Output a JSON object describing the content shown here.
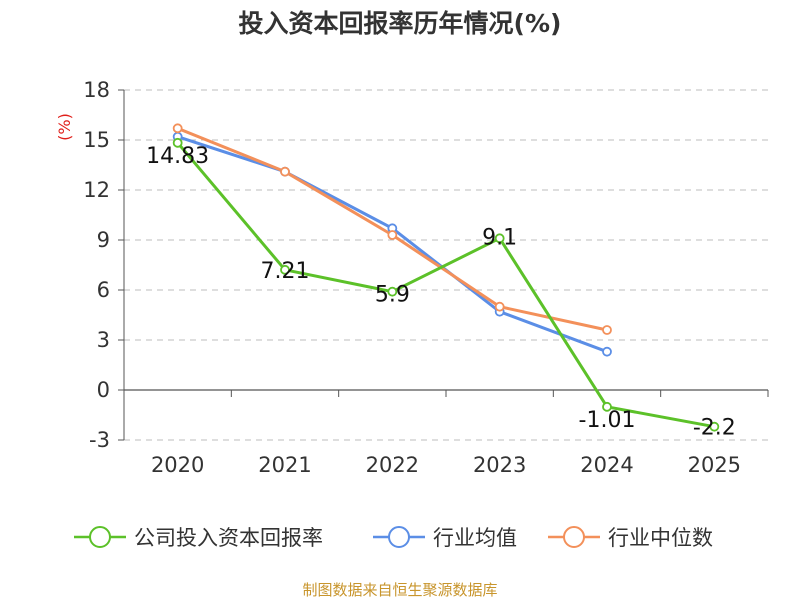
{
  "chart_data": {
    "type": "line",
    "title": "投入资本回报率历年情况(%)",
    "ylabel": "(%)",
    "xlabel": "",
    "categories": [
      "2020",
      "2021",
      "2022",
      "2023",
      "2024",
      "2025"
    ],
    "yticks": [
      18,
      15,
      12,
      9,
      6,
      3,
      0,
      -3
    ],
    "ylim": [
      -3,
      18
    ],
    "grid": true,
    "legend_position": "bottom",
    "series": [
      {
        "name": "公司投入资本回报率",
        "color": "#5cc129",
        "values": [
          14.83,
          7.21,
          5.9,
          9.1,
          -1.01,
          -2.2
        ],
        "labels": [
          "14.83",
          "7.21",
          "5.9",
          "9.1",
          "-1.01",
          "-2.2"
        ]
      },
      {
        "name": "行业均值",
        "color": "#5b8ee6",
        "values": [
          15.2,
          13.1,
          9.7,
          4.7,
          2.3,
          null
        ]
      },
      {
        "name": "行业中位数",
        "color": "#f3905a",
        "values": [
          15.7,
          13.1,
          9.3,
          5.0,
          3.6,
          null
        ]
      }
    ]
  },
  "source": "制图数据来自恒生聚源数据库"
}
